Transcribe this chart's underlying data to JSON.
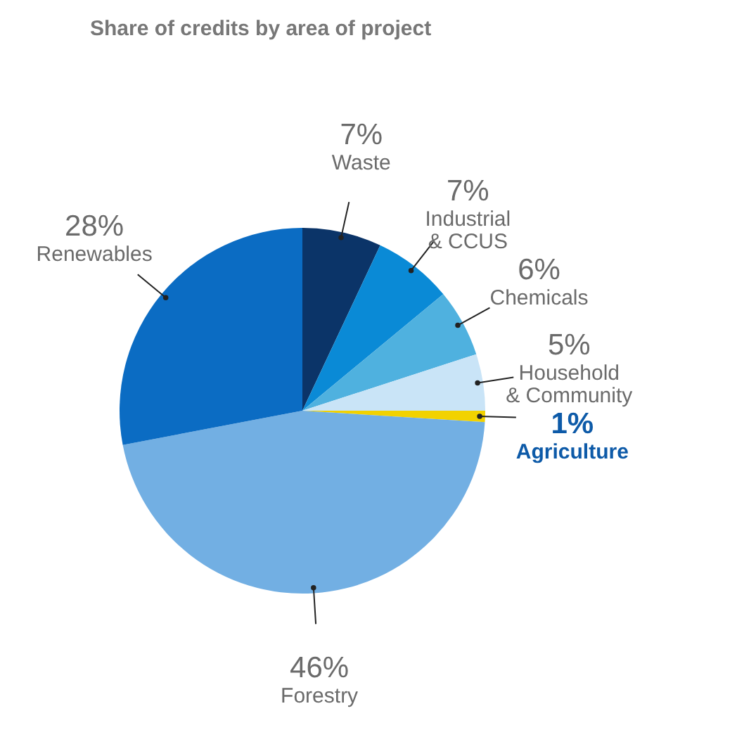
{
  "chart_data": {
    "type": "pie",
    "title": "Share of credits by area of project",
    "categories": [
      "Waste",
      "Industrial\n& CCUS",
      "Chemicals",
      "Household\n& Community",
      "Agriculture",
      "Forestry",
      "Renewables"
    ],
    "values": [
      7,
      7,
      6,
      5,
      1,
      46,
      28
    ],
    "value_labels": [
      "7%",
      "7%",
      "6%",
      "5%",
      "1%",
      "46%",
      "28%"
    ],
    "colors": [
      "#0b3468",
      "#0a8ad6",
      "#4fb1df",
      "#c9e4f7",
      "#f2d200",
      "#72afe3",
      "#0b6cc3"
    ],
    "legend": false
  }
}
